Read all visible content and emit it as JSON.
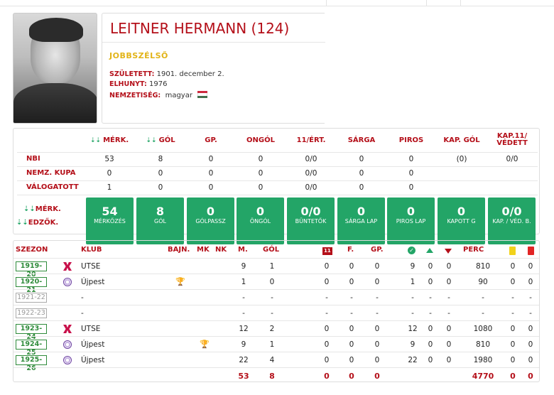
{
  "player": {
    "name": "LEITNER HERMANN (124)",
    "position": "JOBBSZÉLSŐ",
    "born_label": "SZÜLETETT:",
    "born_value": "1901. december 2.",
    "died_label": "ELHUNYT:",
    "died_value": "1976",
    "nat_label": "NEMZETISÉG:",
    "nat_value": "magyar",
    "flag_colors": [
      "#cd2a3e",
      "#ffffff",
      "#436f4d"
    ]
  },
  "stats": {
    "headers": [
      "MÉRK.",
      "GÓL",
      "GP.",
      "ONGÓL",
      "11/ÉRT.",
      "SÁRGA",
      "PIROS",
      "KAP. GÓL",
      "KAP.11/ VÉDETT"
    ],
    "rows": [
      {
        "label": "NBI",
        "values": [
          "53",
          "8",
          "0",
          "0",
          "0/0",
          "0",
          "0",
          "(0)",
          "0/0"
        ]
      },
      {
        "label": "NEMZ. KUPA",
        "values": [
          "0",
          "0",
          "0",
          "0",
          "0/0",
          "0",
          "0",
          "",
          ""
        ]
      },
      {
        "label": "VÁLOGATOTT",
        "values": [
          "1",
          "0",
          "0",
          "0",
          "0/0",
          "0",
          "0",
          "",
          ""
        ]
      }
    ],
    "sort_merk": "MÉRK.",
    "sort_edzok": "EDZŐK.",
    "boxes": [
      {
        "value": "54",
        "label": "MÉRKŐZÉS"
      },
      {
        "value": "8",
        "label": "GÓL"
      },
      {
        "value": "0",
        "label": "GÓLPASSZ"
      },
      {
        "value": "0",
        "label": "ÖNGÓL"
      },
      {
        "value": "0/0",
        "label": "BÜNTETŐK"
      },
      {
        "value": "0",
        "label": "SÁRGA LAP"
      },
      {
        "value": "0",
        "label": "PIROS LAP"
      },
      {
        "value": "0",
        "label": "KAPOTT G"
      },
      {
        "value": "0/0",
        "label": "KAP. / VÉD. B."
      }
    ]
  },
  "seasons": {
    "headers": {
      "season": "SZEZON",
      "club": "KLUB",
      "bajn": "BAJN.",
      "mk": "MK",
      "nk": "NK",
      "m": "M.",
      "gol": "GÓL",
      "f": "F.",
      "gp": "GP.",
      "perc": "PERC",
      "red11": "11"
    },
    "rows": [
      {
        "season": "1919-20",
        "active": true,
        "club": "UTSE",
        "logo": "utse",
        "trophy": "",
        "m": "9",
        "gol": "1",
        "v": [
          "0",
          "0",
          "0"
        ],
        "s": [
          "9",
          "0",
          "0"
        ],
        "perc": "810",
        "cards": [
          "0",
          "0"
        ]
      },
      {
        "season": "1920-21",
        "active": true,
        "club": "Újpest",
        "logo": "ujpest",
        "trophy": "bajn",
        "m": "1",
        "gol": "0",
        "v": [
          "0",
          "0",
          "0"
        ],
        "s": [
          "1",
          "0",
          "0"
        ],
        "perc": "90",
        "cards": [
          "0",
          "0"
        ]
      },
      {
        "season": "1921-22",
        "active": false,
        "club": "-",
        "logo": "",
        "trophy": "",
        "m": "-",
        "gol": "-",
        "v": [
          "-",
          "-",
          "-"
        ],
        "s": [
          "-",
          "-",
          "-"
        ],
        "perc": "-",
        "cards": [
          "-",
          "-"
        ]
      },
      {
        "season": "1922-23",
        "active": false,
        "club": "-",
        "logo": "",
        "trophy": "",
        "m": "-",
        "gol": "-",
        "v": [
          "-",
          "-",
          "-"
        ],
        "s": [
          "-",
          "-",
          "-"
        ],
        "perc": "-",
        "cards": [
          "-",
          "-"
        ]
      },
      {
        "season": "1923-24",
        "active": true,
        "club": "UTSE",
        "logo": "utse",
        "trophy": "",
        "m": "12",
        "gol": "2",
        "v": [
          "0",
          "0",
          "0"
        ],
        "s": [
          "12",
          "0",
          "0"
        ],
        "perc": "1080",
        "cards": [
          "0",
          "0"
        ]
      },
      {
        "season": "1924-25",
        "active": true,
        "club": "Újpest",
        "logo": "ujpest",
        "trophy": "nk",
        "m": "9",
        "gol": "1",
        "v": [
          "0",
          "0",
          "0"
        ],
        "s": [
          "9",
          "0",
          "0"
        ],
        "perc": "810",
        "cards": [
          "0",
          "0"
        ]
      },
      {
        "season": "1925-26",
        "active": true,
        "club": "Újpest",
        "logo": "ujpest",
        "trophy": "",
        "m": "22",
        "gol": "4",
        "v": [
          "0",
          "0",
          "0"
        ],
        "s": [
          "22",
          "0",
          "0"
        ],
        "perc": "1980",
        "cards": [
          "0",
          "0"
        ]
      }
    ],
    "totals": {
      "m": "53",
      "gol": "8",
      "v": [
        "0",
        "0",
        "0"
      ],
      "perc": "4770",
      "cards": [
        "0",
        "0"
      ]
    }
  },
  "colors": {
    "accent": "#b40f19",
    "green": "#23a567",
    "gold": "#e2b418"
  }
}
